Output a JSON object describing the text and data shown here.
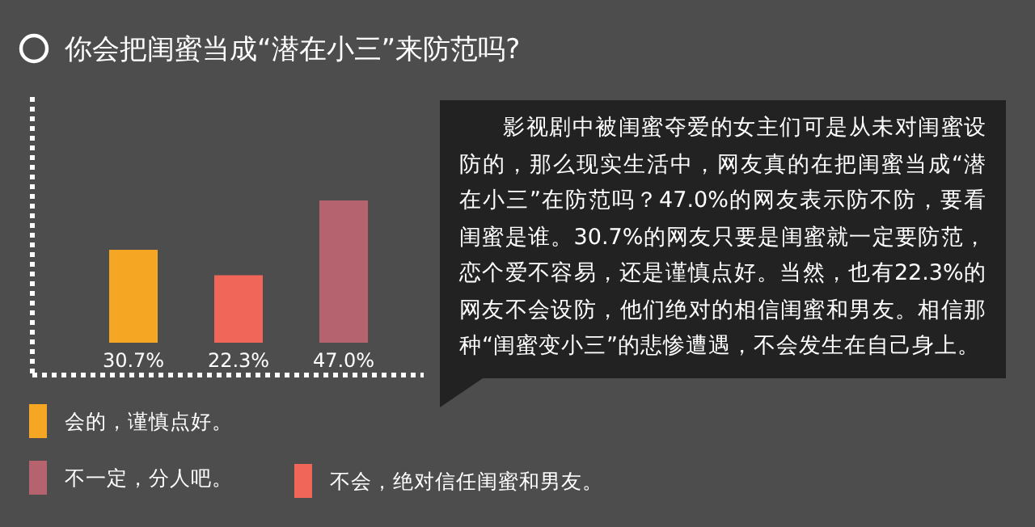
{
  "chart_data": {
    "type": "bar",
    "title": "你会把闺蜜当成“潜在小三”来防范吗?",
    "categories": [
      null,
      null,
      null
    ],
    "values": [
      30.7,
      22.3,
      47.0
    ],
    "colors": [
      "#f5a623",
      "#f0675a",
      "#b5636f"
    ],
    "value_labels": [
      "30.7%",
      "22.3%",
      "47.0%"
    ],
    "annotations": [
      "影视剧中被闺蜜夺爱的女主们可是从未对闺蜜设防的，那么现实生活中，网友真的在把闺蜜当成“潜在小三”在防范吗？47.0%的网友表示防不防，要看闺蜜是谁。30.7%的网友只要是闺蜜就一定要防范，恋个爱不容易，还是谨慎点好。当然，也有22.3%的网友不会设防，他们绝对的相信闺蜜和男友。相信那种“闺蜜变小三”的悲惨遭遇，不会发生在自己身上。",
      "会的，谨慎点好。",
      "不一定，分人吧。",
      "不会，绝对信任闺蜜和男友。"
    ]
  }
}
